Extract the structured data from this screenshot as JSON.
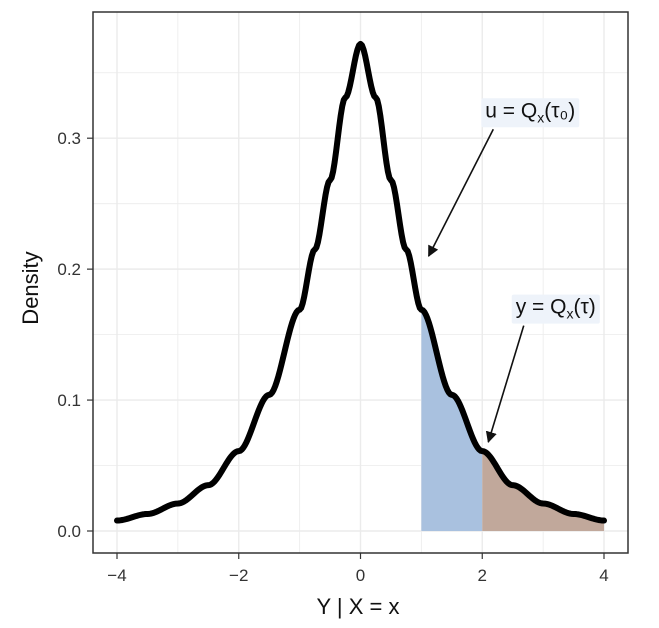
{
  "chart_data": {
    "type": "line",
    "title": "",
    "xlabel": "Y | X = x",
    "ylabel": "Density",
    "xlim": [
      -4,
      4
    ],
    "ylim": [
      0,
      0.375
    ],
    "x_ticks": [
      -4,
      -2,
      0,
      2,
      4
    ],
    "x_tick_labels": [
      "−4",
      "−2",
      "0",
      "2",
      "4"
    ],
    "y_ticks": [
      0.0,
      0.1,
      0.2,
      0.3
    ],
    "y_tick_labels": [
      "0.0",
      "0.1",
      "0.2",
      "0.3"
    ],
    "grid": true,
    "density": {
      "x": [
        -4,
        -3.5,
        -3,
        -2.5,
        -2,
        -1.5,
        -1,
        -0.75,
        -0.5,
        -0.25,
        0,
        0.25,
        0.5,
        0.75,
        1,
        1.5,
        2,
        2.5,
        3,
        3.5,
        4
      ],
      "y": [
        0.008,
        0.013,
        0.021,
        0.035,
        0.061,
        0.104,
        0.169,
        0.215,
        0.268,
        0.331,
        0.372,
        0.331,
        0.268,
        0.215,
        0.169,
        0.104,
        0.061,
        0.035,
        0.021,
        0.013,
        0.008
      ]
    },
    "shaded_regions": [
      {
        "from": 1,
        "to": 2,
        "color": "#a9c1df"
      },
      {
        "from": 2,
        "to": 4,
        "color": "#c1a89b"
      }
    ],
    "annotations": [
      {
        "label": "u = Q",
        "subscript": "x",
        "suffix": "(τ₀)",
        "text_x": 2.05,
        "text_y": 0.316,
        "point_x": 1.12,
        "point_y": 0.21
      },
      {
        "label": "y = Q",
        "subscript": "x",
        "suffix": "(τ)",
        "text_x": 2.55,
        "text_y": 0.166,
        "point_x": 2.1,
        "point_y": 0.068
      }
    ],
    "colors": {
      "curve": "#000000",
      "grid": "#ebebeb",
      "border": "#333333",
      "label_bg": "#eef3fa"
    }
  }
}
